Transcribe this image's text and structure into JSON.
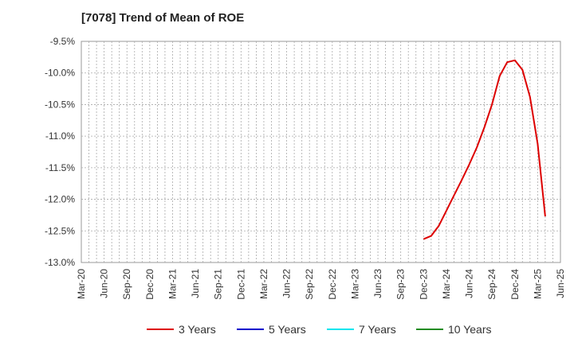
{
  "chart_data": {
    "type": "line",
    "title": "[7078]  Trend of Mean of ROE",
    "xlabel": "",
    "ylabel": "",
    "x_ticks": [
      "Mar-20",
      "Jun-20",
      "Sep-20",
      "Dec-20",
      "Mar-21",
      "Jun-21",
      "Sep-21",
      "Dec-21",
      "Mar-22",
      "Jun-22",
      "Sep-22",
      "Dec-22",
      "Mar-23",
      "Jun-23",
      "Sep-23",
      "Dec-23",
      "Mar-24",
      "Jun-24",
      "Sep-24",
      "Dec-24",
      "Mar-25",
      "Jun-25"
    ],
    "y_ticks": [
      "-9.5%",
      "-10.0%",
      "-10.5%",
      "-11.0%",
      "-11.5%",
      "-12.0%",
      "-12.5%",
      "-13.0%"
    ],
    "ylim": [
      -13.0,
      -9.5
    ],
    "grid": true,
    "legend_position": "bottom",
    "series": [
      {
        "name": "3 Years",
        "color": "#dd0000",
        "points": [
          [
            "Dec-23",
            -12.63
          ],
          [
            "Jan-24",
            -12.58
          ],
          [
            "Feb-24",
            -12.42
          ],
          [
            "Mar-24",
            -12.18
          ],
          [
            "Apr-24",
            -11.94
          ],
          [
            "May-24",
            -11.7
          ],
          [
            "Jun-24",
            -11.45
          ],
          [
            "Jul-24",
            -11.18
          ],
          [
            "Aug-24",
            -10.86
          ],
          [
            "Sep-24",
            -10.5
          ],
          [
            "Oct-24",
            -10.05
          ],
          [
            "Nov-24",
            -9.83
          ],
          [
            "Dec-24",
            -9.8
          ],
          [
            "Jan-25",
            -9.95
          ],
          [
            "Feb-25",
            -10.38
          ],
          [
            "Mar-25",
            -11.12
          ],
          [
            "Apr-25",
            -12.27
          ]
        ]
      },
      {
        "name": "5 Years",
        "color": "#0000cc",
        "points": []
      },
      {
        "name": "7 Years",
        "color": "#00e5ee",
        "points": []
      },
      {
        "name": "10 Years",
        "color": "#228b22",
        "points": []
      }
    ]
  }
}
